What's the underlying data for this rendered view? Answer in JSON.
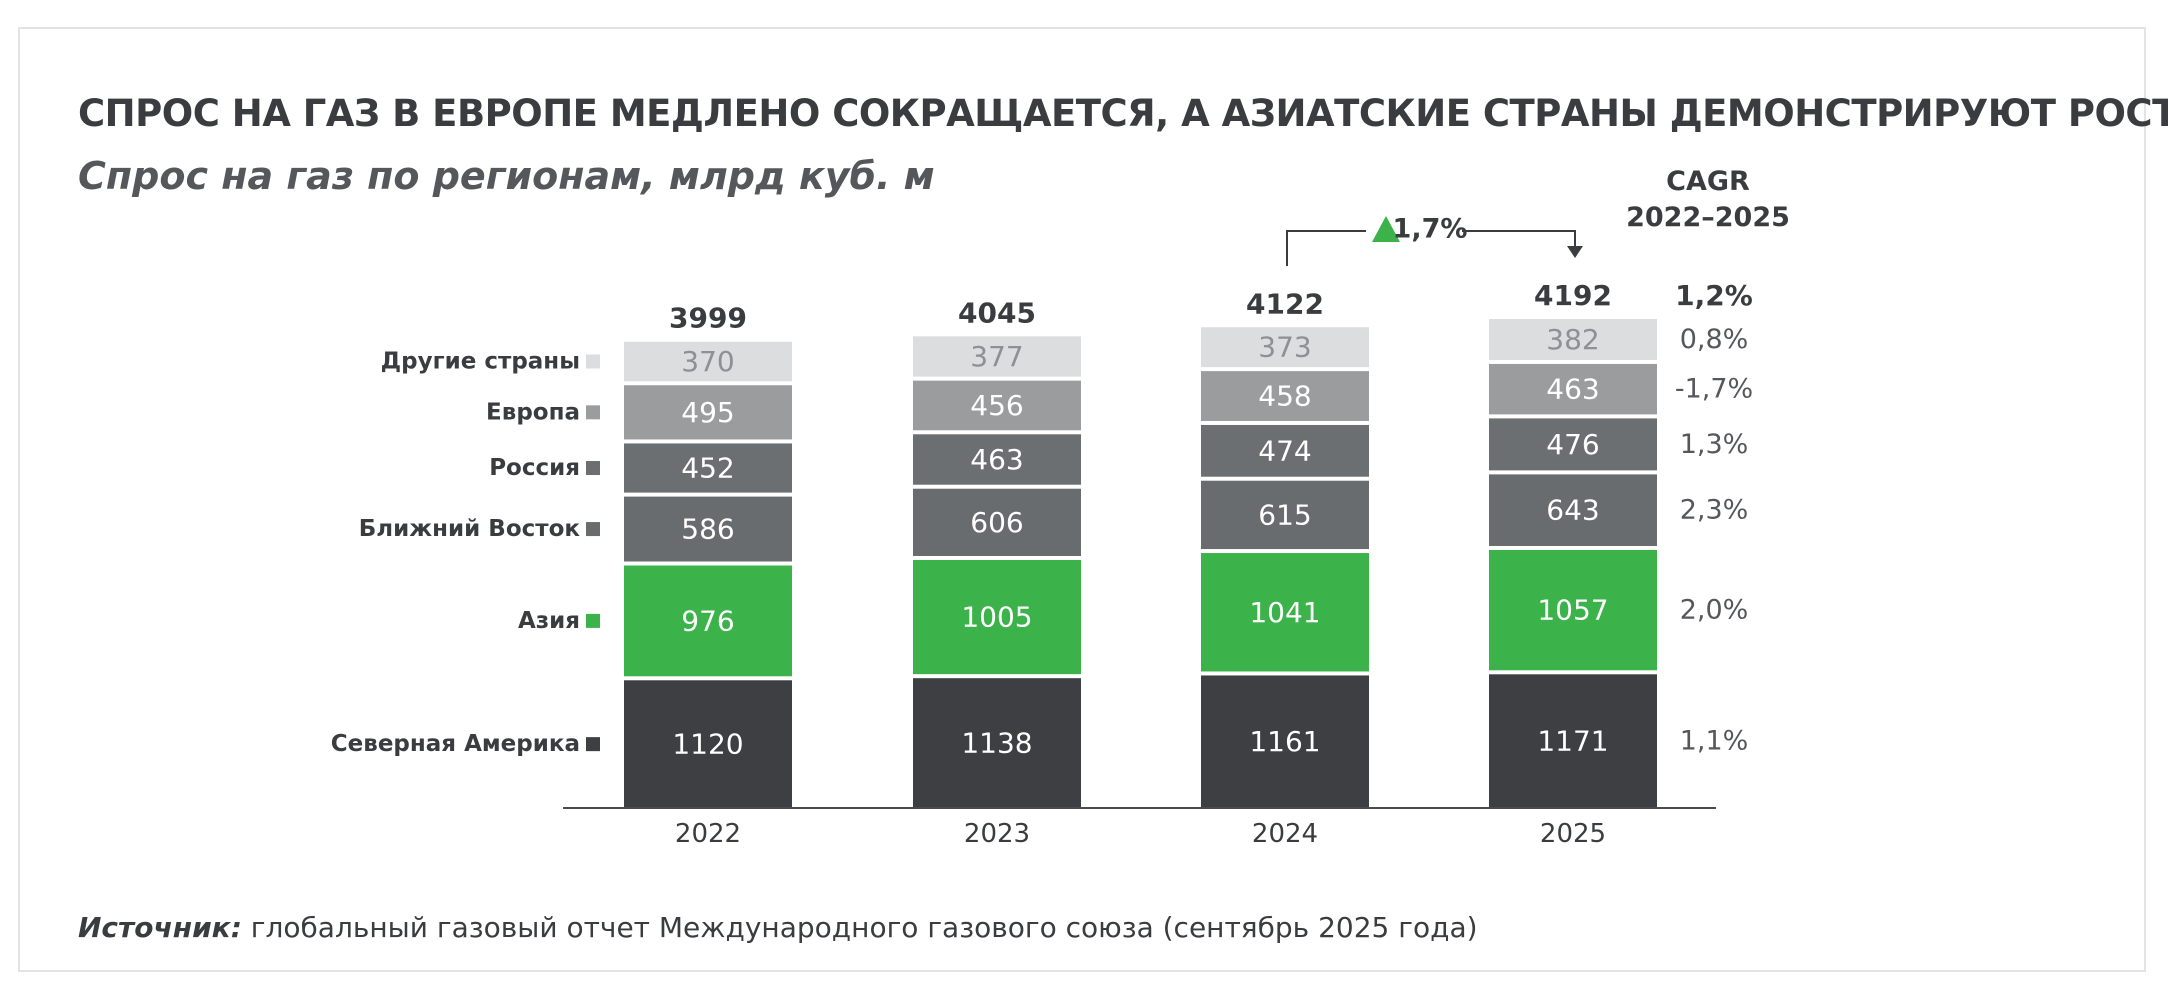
{
  "title": "СПРОС НА ГАЗ В ЕВРОПЕ МЕДЛЕНО СОКРАЩАЕТСЯ, А АЗИАТСКИЕ СТРАНЫ ДЕМОНСТРИРУЮТ РОСТ.",
  "subtitle": "Спрос на газ по регионам, млрд куб. м",
  "cagr_header": {
    "line1": "CAGR",
    "line2": "2022–2025"
  },
  "growth_annotation": "1,7%",
  "source": {
    "label": "Источник:",
    "text": " глобальный газовый отчет Международного газового союза (сентябрь 2025 года)"
  },
  "colors": {
    "north_america": "#3d3f42",
    "asia": "#3bb34a",
    "middle_east": "#696c6e",
    "russia": "#6c6f71",
    "europe": "#9a9c9e",
    "other": "#dcdddf",
    "up_arrow": "#3bb34a"
  },
  "chart_data": {
    "type": "bar",
    "stacked": true,
    "categories": [
      "2022",
      "2023",
      "2024",
      "2025"
    ],
    "totals": [
      "3999",
      "4045",
      "4122",
      "4192"
    ],
    "total_cagr": "1,2%",
    "series": [
      {
        "name": "Северная Америка",
        "values": [
          1120,
          1138,
          1161,
          1171
        ],
        "cagr": "1,1%",
        "color_key": "north_america"
      },
      {
        "name": "Азия",
        "values": [
          976,
          1005,
          1041,
          1057
        ],
        "cagr": "2,0%",
        "color_key": "asia"
      },
      {
        "name": "Ближний Восток",
        "values": [
          586,
          606,
          615,
          643
        ],
        "cagr": "2,3%",
        "color_key": "middle_east"
      },
      {
        "name": "Россия",
        "values": [
          452,
          463,
          474,
          476
        ],
        "cagr": "1,3%",
        "color_key": "russia"
      },
      {
        "name": "Европа",
        "values": [
          495,
          456,
          458,
          463
        ],
        "cagr": "-1,7%",
        "color_key": "europe"
      },
      {
        "name": "Другие страны",
        "values": [
          370,
          377,
          373,
          382
        ],
        "cagr": "0,8%",
        "color_key": "other"
      }
    ],
    "legend_position": "left",
    "grid": false
  }
}
